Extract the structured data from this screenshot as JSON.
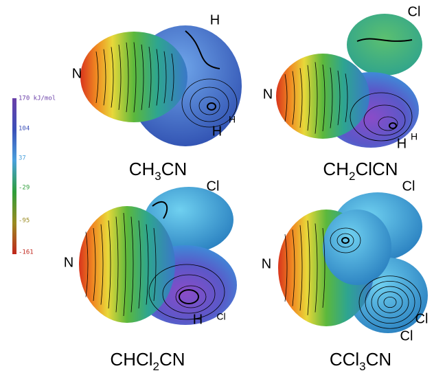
{
  "color_scale": {
    "labels": [
      "170 kJ/mol",
      "104",
      "37",
      "-29",
      "-95",
      "-161"
    ]
  },
  "molecules": [
    {
      "name_parts": [
        "CH",
        "3",
        "CN"
      ],
      "atoms": [
        "N",
        "H",
        "H",
        "H"
      ]
    },
    {
      "name_parts": [
        "CH",
        "2",
        "ClCN"
      ],
      "atoms": [
        "Cl",
        "N",
        "H",
        "H"
      ]
    },
    {
      "name_parts": [
        "CHCl",
        "2",
        "CN"
      ],
      "atoms": [
        "Cl",
        "N",
        "H",
        "Cl"
      ]
    },
    {
      "name_parts": [
        "CCl",
        "3",
        "CN"
      ],
      "atoms": [
        "Cl",
        "N",
        "Cl",
        "Cl"
      ]
    }
  ]
}
